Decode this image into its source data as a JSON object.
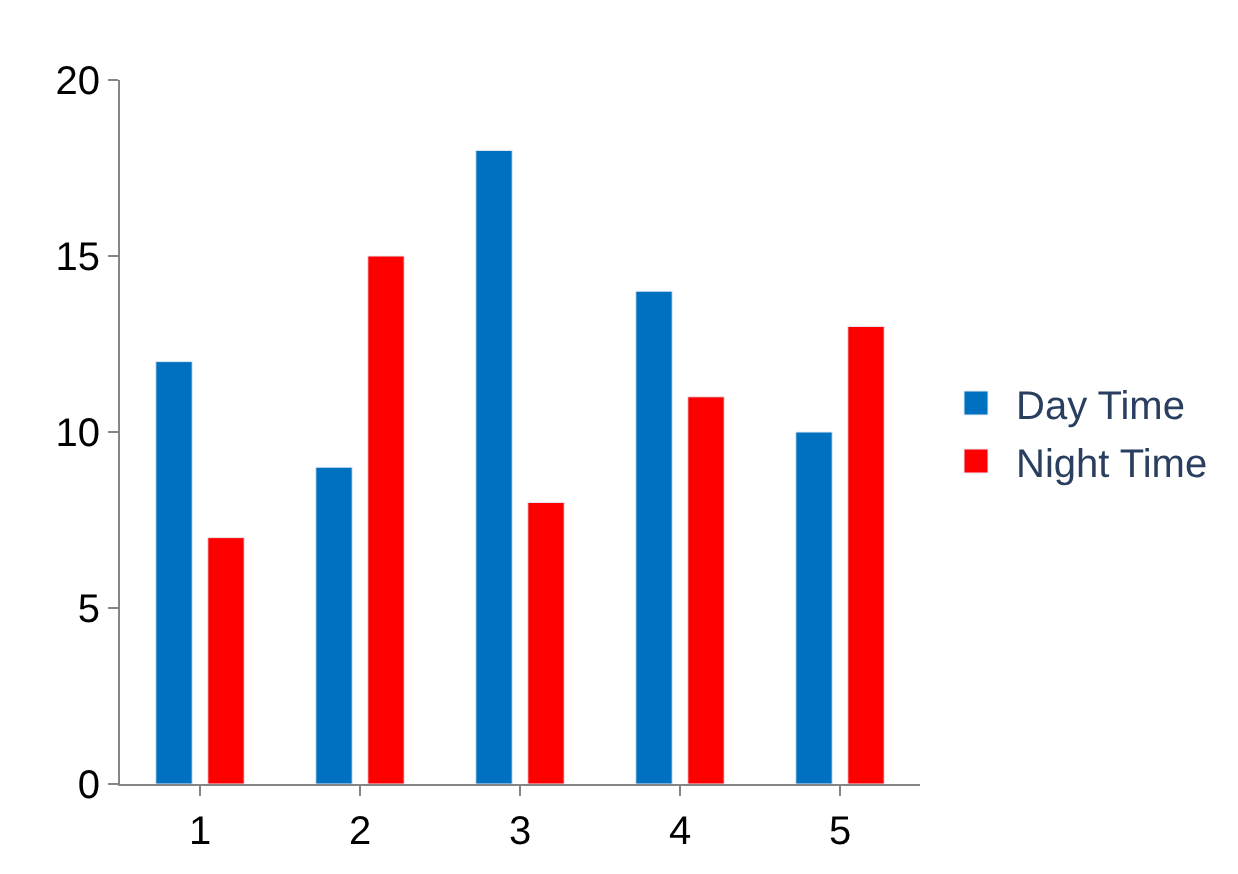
{
  "chart_data": {
    "type": "bar",
    "categories": [
      "1",
      "2",
      "3",
      "4",
      "5"
    ],
    "series": [
      {
        "name": "Day Time",
        "color": "#0070c0",
        "values": [
          12,
          9,
          18,
          14,
          10
        ]
      },
      {
        "name": "Night Time",
        "color": "#ff0000",
        "values": [
          7,
          15,
          8,
          11,
          13
        ]
      }
    ],
    "ylim": [
      0,
      20
    ],
    "yticks": [
      0,
      5,
      10,
      15,
      20
    ],
    "legend": "right"
  }
}
